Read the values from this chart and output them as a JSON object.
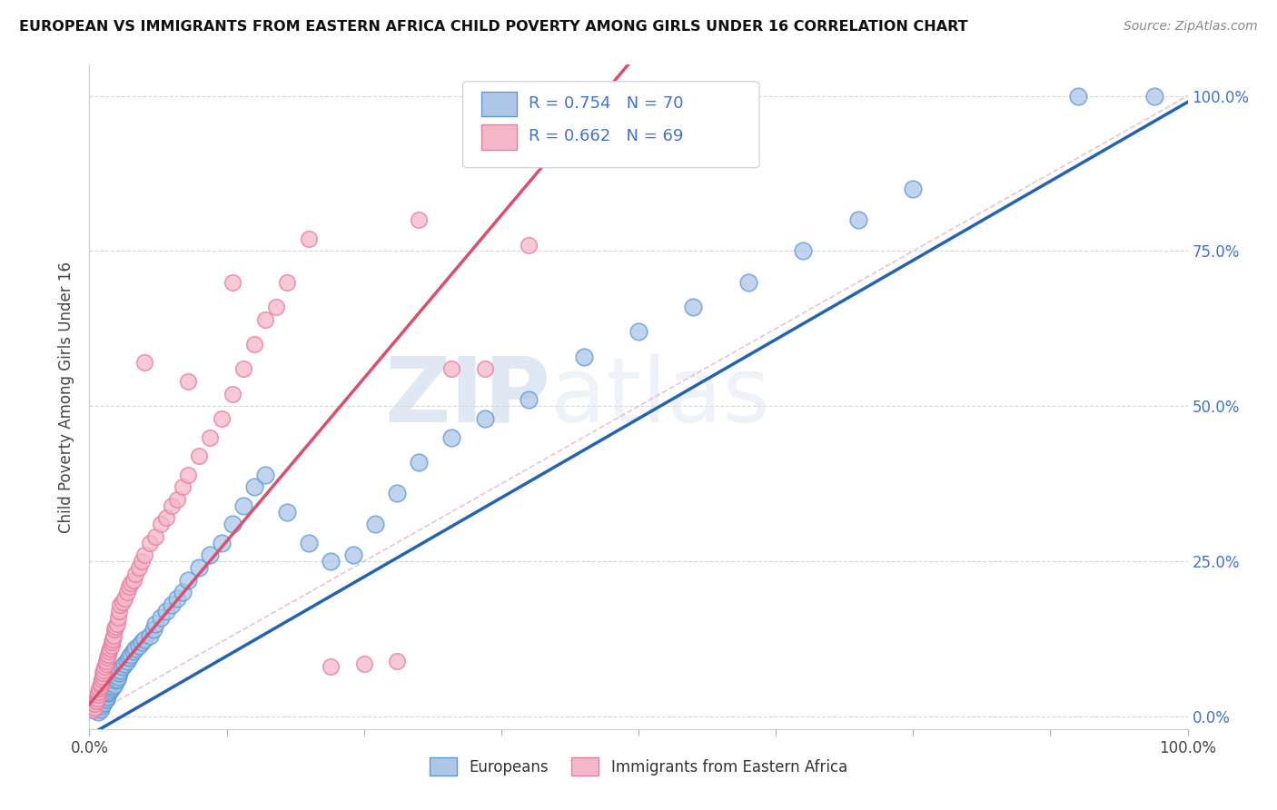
{
  "title": "EUROPEAN VS IMMIGRANTS FROM EASTERN AFRICA CHILD POVERTY AMONG GIRLS UNDER 16 CORRELATION CHART",
  "source": "Source: ZipAtlas.com",
  "ylabel": "Child Poverty Among Girls Under 16",
  "watermark_zip": "ZIP",
  "watermark_atlas": "atlas",
  "legend_r1": "R = 0.754",
  "legend_n1": "N = 70",
  "legend_r2": "R = 0.662",
  "legend_n2": "N = 69",
  "series1_label": "Europeans",
  "series2_label": "Immigrants from Eastern Africa",
  "color1_face": "#aec6e8",
  "color1_edge": "#5b9bd5",
  "color2_face": "#f4b8c8",
  "color2_edge": "#e87ca0",
  "line_color1": "#2464ae",
  "line_color2": "#d94f6e",
  "background": "#ffffff",
  "grid_color": "#d8d8d8",
  "ytick_color": "#4472c4",
  "xlim": [
    0,
    1
  ],
  "ylim": [
    -0.02,
    1.02
  ],
  "ytick_labels_right": [
    "0.0%",
    "25.0%",
    "50.0%",
    "75.0%",
    "100.0%"
  ],
  "ytick_vals_right": [
    0,
    0.25,
    0.5,
    0.75,
    1.0
  ],
  "eu_x": [
    0.005,
    0.007,
    0.008,
    0.01,
    0.01,
    0.011,
    0.012,
    0.013,
    0.014,
    0.015,
    0.015,
    0.016,
    0.017,
    0.018,
    0.019,
    0.02,
    0.02,
    0.021,
    0.022,
    0.023,
    0.024,
    0.025,
    0.026,
    0.027,
    0.028,
    0.03,
    0.032,
    0.034,
    0.036,
    0.038,
    0.04,
    0.042,
    0.045,
    0.048,
    0.05,
    0.055,
    0.058,
    0.06,
    0.065,
    0.07,
    0.075,
    0.08,
    0.085,
    0.09,
    0.1,
    0.11,
    0.12,
    0.13,
    0.14,
    0.15,
    0.16,
    0.18,
    0.2,
    0.22,
    0.24,
    0.26,
    0.28,
    0.3,
    0.33,
    0.36,
    0.4,
    0.45,
    0.5,
    0.55,
    0.6,
    0.65,
    0.7,
    0.75,
    0.9,
    0.97
  ],
  "eu_y": [
    0.01,
    0.015,
    0.008,
    0.012,
    0.02,
    0.018,
    0.025,
    0.022,
    0.03,
    0.028,
    0.035,
    0.032,
    0.038,
    0.04,
    0.042,
    0.045,
    0.05,
    0.048,
    0.055,
    0.052,
    0.058,
    0.06,
    0.065,
    0.07,
    0.075,
    0.08,
    0.085,
    0.09,
    0.095,
    0.1,
    0.105,
    0.11,
    0.115,
    0.12,
    0.125,
    0.13,
    0.14,
    0.15,
    0.16,
    0.17,
    0.18,
    0.19,
    0.2,
    0.22,
    0.24,
    0.26,
    0.28,
    0.31,
    0.34,
    0.37,
    0.39,
    0.33,
    0.28,
    0.25,
    0.26,
    0.31,
    0.36,
    0.41,
    0.45,
    0.48,
    0.51,
    0.58,
    0.62,
    0.66,
    0.7,
    0.75,
    0.8,
    0.85,
    1.0,
    1.0
  ],
  "ea_x": [
    0.003,
    0.005,
    0.005,
    0.006,
    0.007,
    0.008,
    0.008,
    0.009,
    0.01,
    0.01,
    0.011,
    0.012,
    0.012,
    0.013,
    0.014,
    0.015,
    0.015,
    0.016,
    0.017,
    0.018,
    0.019,
    0.02,
    0.02,
    0.021,
    0.022,
    0.023,
    0.024,
    0.025,
    0.026,
    0.027,
    0.028,
    0.03,
    0.032,
    0.034,
    0.036,
    0.038,
    0.04,
    0.042,
    0.045,
    0.048,
    0.05,
    0.055,
    0.06,
    0.065,
    0.07,
    0.075,
    0.08,
    0.085,
    0.09,
    0.1,
    0.11,
    0.12,
    0.13,
    0.14,
    0.15,
    0.16,
    0.17,
    0.18,
    0.2,
    0.22,
    0.25,
    0.28,
    0.3,
    0.33,
    0.36,
    0.4,
    0.13,
    0.09,
    0.05
  ],
  "ea_y": [
    0.01,
    0.015,
    0.02,
    0.025,
    0.03,
    0.035,
    0.04,
    0.045,
    0.05,
    0.055,
    0.06,
    0.065,
    0.07,
    0.075,
    0.08,
    0.085,
    0.09,
    0.095,
    0.1,
    0.105,
    0.11,
    0.115,
    0.12,
    0.125,
    0.13,
    0.14,
    0.145,
    0.15,
    0.16,
    0.17,
    0.18,
    0.185,
    0.19,
    0.2,
    0.21,
    0.215,
    0.22,
    0.23,
    0.24,
    0.25,
    0.26,
    0.28,
    0.29,
    0.31,
    0.32,
    0.34,
    0.35,
    0.37,
    0.39,
    0.42,
    0.45,
    0.48,
    0.52,
    0.56,
    0.6,
    0.64,
    0.66,
    0.7,
    0.77,
    0.08,
    0.085,
    0.09,
    0.8,
    0.56,
    0.56,
    0.76,
    0.7,
    0.54,
    0.57
  ]
}
